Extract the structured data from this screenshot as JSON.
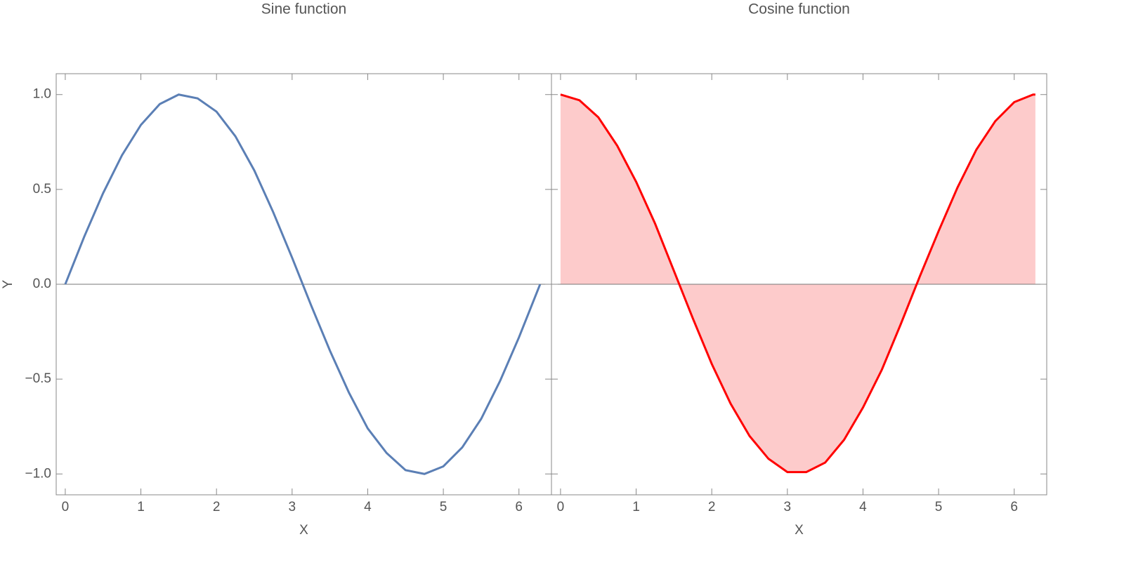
{
  "chart_data": [
    {
      "type": "line",
      "title": "Sine function",
      "xlabel": "X",
      "ylabel": "Y",
      "x": [
        0,
        0.25,
        0.5,
        0.75,
        1,
        1.25,
        1.5,
        1.75,
        2,
        2.25,
        2.5,
        2.75,
        3,
        3.25,
        3.5,
        3.75,
        4,
        4.25,
        4.5,
        4.75,
        5,
        5.25,
        5.5,
        5.75,
        6,
        6.25,
        6.28
      ],
      "values": [
        0,
        0.25,
        0.48,
        0.68,
        0.84,
        0.95,
        1.0,
        0.98,
        0.91,
        0.78,
        0.6,
        0.38,
        0.14,
        -0.11,
        -0.35,
        -0.57,
        -0.76,
        -0.89,
        -0.98,
        -1.0,
        -0.96,
        -0.86,
        -0.71,
        -0.51,
        -0.28,
        -0.03,
        0
      ],
      "color": "#5b7fb5",
      "xlim": [
        -0.12,
        6.43
      ],
      "ylim": [
        -1.11,
        1.11
      ],
      "xticks": [
        0,
        1,
        2,
        3,
        4,
        5,
        6
      ],
      "yticks": [
        {
          "value": -1,
          "label": "−1.0"
        },
        {
          "value": -0.5,
          "label": "−0.5"
        },
        {
          "value": 0,
          "label": "0.0"
        },
        {
          "value": 0.5,
          "label": "0.5"
        },
        {
          "value": 1,
          "label": "1.0"
        }
      ]
    },
    {
      "type": "area",
      "title": "Cosine function",
      "xlabel": "X",
      "x": [
        0,
        0.25,
        0.5,
        0.75,
        1,
        1.25,
        1.5,
        1.75,
        2,
        2.25,
        2.5,
        2.75,
        3,
        3.25,
        3.5,
        3.75,
        4,
        4.25,
        4.5,
        4.75,
        5,
        5.25,
        5.5,
        5.75,
        6,
        6.25,
        6.28
      ],
      "values": [
        1,
        0.97,
        0.88,
        0.73,
        0.54,
        0.32,
        0.07,
        -0.18,
        -0.42,
        -0.63,
        -0.8,
        -0.92,
        -0.99,
        -0.99,
        -0.94,
        -0.82,
        -0.65,
        -0.45,
        -0.21,
        0.04,
        0.28,
        0.51,
        0.71,
        0.86,
        0.96,
        1.0,
        1.0
      ],
      "color": "#ff0000",
      "fill_color": "#fdcbcb",
      "xlim": [
        -0.12,
        6.43
      ],
      "ylim": [
        -1.11,
        1.11
      ],
      "xticks": [
        0,
        1,
        2,
        3,
        4,
        5,
        6
      ]
    }
  ]
}
